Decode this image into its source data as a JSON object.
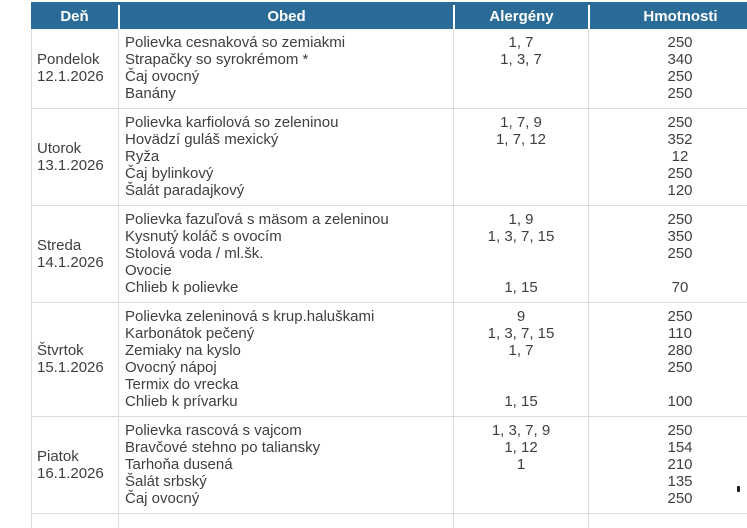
{
  "colors": {
    "header_bg": "#2b6b97",
    "header_text": "#ffffff",
    "body_text": "#3d3f41",
    "grid_line": "#d9dce0"
  },
  "table": {
    "headers": [
      "Deň",
      "Obed",
      "Alergény",
      "Hmotnosti"
    ],
    "rows": [
      {
        "day": "Pondelok",
        "date": "12.1.2026",
        "items": [
          {
            "dish": "Polievka cesnaková so zemiakmi",
            "allergens": "1, 7",
            "weight": "250"
          },
          {
            "dish": "Strapačky so syrokrémom *",
            "allergens": "1, 3, 7",
            "weight": "340"
          },
          {
            "dish": "Čaj ovocný",
            "allergens": "",
            "weight": "250"
          },
          {
            "dish": "Banány",
            "allergens": "",
            "weight": "250"
          }
        ]
      },
      {
        "day": "Utorok",
        "date": "13.1.2026",
        "items": [
          {
            "dish": "Polievka karfiolová so zeleninou",
            "allergens": "1, 7, 9",
            "weight": "250"
          },
          {
            "dish": "Hovädzí guláš mexický",
            "allergens": "1, 7, 12",
            "weight": "352"
          },
          {
            "dish": "Ryža",
            "allergens": "",
            "weight": "12"
          },
          {
            "dish": "Čaj bylinkový",
            "allergens": "",
            "weight": "250"
          },
          {
            "dish": "Šalát paradajkový",
            "allergens": "",
            "weight": "120"
          }
        ]
      },
      {
        "day": "Streda",
        "date": "14.1.2026",
        "items": [
          {
            "dish": "Polievka fazuľová s mäsom a zeleninou",
            "allergens": "1, 9",
            "weight": "250"
          },
          {
            "dish": "Kysnutý koláč s ovocím",
            "allergens": "1, 3, 7, 15",
            "weight": "350"
          },
          {
            "dish": "Stolová voda / ml.šk.",
            "allergens": "",
            "weight": "250"
          },
          {
            "dish": "Ovocie",
            "allergens": "",
            "weight": ""
          },
          {
            "dish": "Chlieb k polievke",
            "allergens": "1, 15",
            "weight": "70"
          }
        ]
      },
      {
        "day": "Štvrtok",
        "date": "15.1.2026",
        "items": [
          {
            "dish": "Polievka zeleninová s krup.haluškami",
            "allergens": "9",
            "weight": "250"
          },
          {
            "dish": "Karbonátok pečený",
            "allergens": "1, 3, 7, 15",
            "weight": "110"
          },
          {
            "dish": "Zemiaky na kyslo",
            "allergens": "1, 7",
            "weight": "280"
          },
          {
            "dish": "Ovocný nápoj",
            "allergens": "",
            "weight": "250"
          },
          {
            "dish": "Termix do vrecka",
            "allergens": "",
            "weight": ""
          },
          {
            "dish": "Chlieb k prívarku",
            "allergens": "1, 15",
            "weight": "100"
          }
        ]
      },
      {
        "day": "Piatok",
        "date": "16.1.2026",
        "items": [
          {
            "dish": "Polievka rascová s vajcom",
            "allergens": "1, 3, 7, 9",
            "weight": "250"
          },
          {
            "dish": "Bravčové stehno po taliansky",
            "allergens": "1, 12",
            "weight": "154"
          },
          {
            "dish": "Tarhoňa dusená",
            "allergens": "1",
            "weight": "210"
          },
          {
            "dish": "Šalát srbský",
            "allergens": "",
            "weight": "135"
          },
          {
            "dish": "Čaj ovocný",
            "allergens": "",
            "weight": "250"
          }
        ]
      }
    ]
  }
}
